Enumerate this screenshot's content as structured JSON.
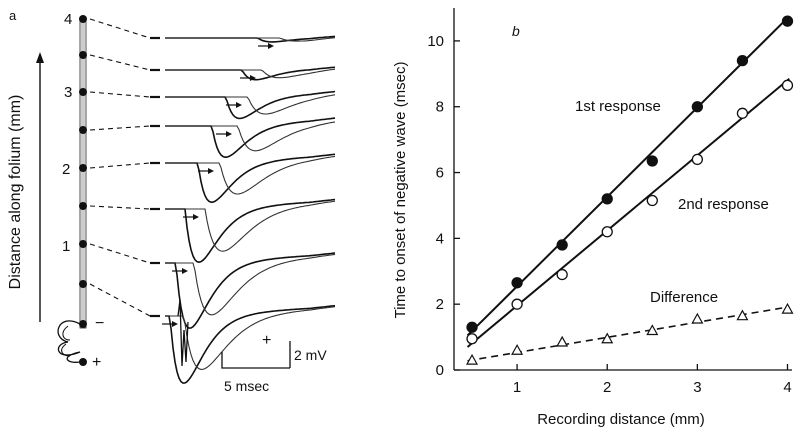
{
  "panel_a": {
    "panel_label": "a",
    "ylabel": "Distance along folium (mm)",
    "electrode_ticks": [
      "4",
      "3",
      "2",
      "1"
    ],
    "stim_plus": "+",
    "stim_minus": "−",
    "scale_time": "5 msec",
    "scale_voltage": "2 mV",
    "scale_plus": "+"
  },
  "chart_data": {
    "type": "scatter",
    "panel_label": "b",
    "xlabel": "Recording distance (mm)",
    "ylabel": "Time to onset of negative wave (msec)",
    "xlim": [
      0.3,
      4.05
    ],
    "ylim": [
      0,
      11
    ],
    "x_ticks": [
      1,
      2,
      3,
      4
    ],
    "y_ticks": [
      0,
      2,
      4,
      6,
      8,
      10
    ],
    "grid": false,
    "series": [
      {
        "name": "1st response",
        "marker": "filled-circle",
        "line": "solid",
        "x": [
          0.5,
          1.0,
          1.5,
          2.0,
          2.5,
          3.0,
          3.5,
          4.0
        ],
        "y": [
          1.3,
          2.65,
          3.8,
          5.2,
          6.35,
          8.0,
          9.4,
          10.6
        ],
        "fit": {
          "x": [
            0.45,
            4.02
          ],
          "y": [
            1.05,
            10.75
          ]
        }
      },
      {
        "name": "2nd response",
        "marker": "open-circle",
        "line": "solid",
        "x": [
          0.5,
          1.0,
          1.5,
          2.0,
          2.5,
          3.0,
          3.5,
          4.0
        ],
        "y": [
          0.95,
          2.0,
          2.9,
          4.2,
          5.15,
          6.4,
          7.8,
          8.65
        ],
        "fit": {
          "x": [
            0.45,
            4.02
          ],
          "y": [
            0.7,
            8.85
          ]
        }
      },
      {
        "name": "Difference",
        "marker": "open-triangle",
        "line": "dashed",
        "x": [
          0.5,
          1.0,
          1.5,
          2.0,
          2.5,
          3.0,
          3.5,
          4.0
        ],
        "y": [
          0.3,
          0.6,
          0.85,
          0.95,
          1.2,
          1.55,
          1.65,
          1.85
        ],
        "fit": {
          "x": [
            0.45,
            4.02
          ],
          "y": [
            0.28,
            1.92
          ]
        }
      }
    ]
  }
}
